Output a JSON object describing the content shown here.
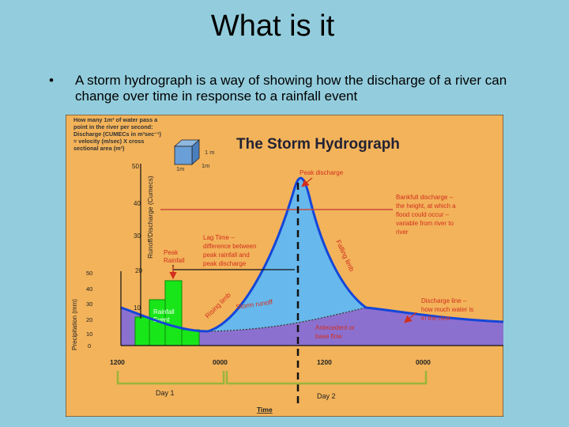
{
  "slide": {
    "title": "What is it",
    "bullet": "A storm hydrograph is a way of showing how the discharge of a river can change over time in response to a rainfall event",
    "bullet_symbol": "•"
  },
  "diagram": {
    "title": "The Storm Hydrograph",
    "cumecs_note": [
      "How many 1m³ of water pass a",
      "point in the river per second:",
      "Discharge (CUMECs in m³sec⁻¹)",
      "= velocity (m/sec) X cross",
      "sectional area (m²)"
    ],
    "cube_labels": {
      "depth": "1m",
      "width": "1m",
      "side": "1 m"
    },
    "axes": {
      "discharge_label": "Runoff/Discharge (Cumecs)",
      "discharge_ticks": [
        "50",
        "40",
        "30",
        "20",
        "10"
      ],
      "precip_label": "Precipitation (mm)",
      "precip_ticks": [
        "50",
        "40",
        "30",
        "20",
        "10",
        "0"
      ],
      "time_ticks": [
        "1200",
        "0000",
        "1200",
        "0000"
      ],
      "day1": "Day 1",
      "day2": "Day 2",
      "time_label": "Time"
    },
    "annotations": {
      "peak_discharge": "Peak discharge",
      "bankfull": [
        "Bankfull discharge –",
        "the height, at which a",
        "flood could occur –",
        "variable from river to",
        "river"
      ],
      "lag_time": [
        "Lag Time –",
        "difference between",
        "peak rainfall and",
        "peak discharge"
      ],
      "peak_rainfall": [
        "Peak",
        "Rainfall"
      ],
      "falling_limb": "Falling limb",
      "rising_limb": "Rising limb",
      "storm_runoff": "Storm runoff",
      "discharge_line": [
        "Discharge line –",
        "how much water is",
        "in the river"
      ],
      "base_flow": [
        "Antecedent  or",
        "base flow"
      ],
      "rainfall_event": [
        "Rainfall",
        "Event"
      ]
    },
    "colors": {
      "panel": "#f3b35a",
      "storm_runoff_fill": "#67b8ec",
      "base_flow_fill": "#8c70cf",
      "rainfall_bars": "#19e619",
      "hydrograph_line": "#1446d9",
      "annotation_red": "#d12f1e",
      "bankfull_line": "#c94b3c",
      "day_bracket": "#9ab53a"
    }
  }
}
